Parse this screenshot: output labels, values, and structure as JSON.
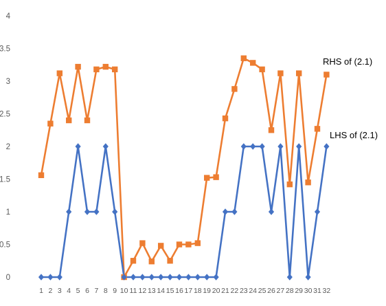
{
  "chart_data": {
    "type": "line",
    "x_tick_labels": [
      "1",
      "2",
      "3",
      "4",
      "5",
      "6",
      "7",
      "8",
      "9",
      "10",
      "11",
      "12",
      "13",
      "14",
      "15",
      "16",
      "17",
      "18",
      "19",
      "20",
      "21",
      "22",
      "23",
      "24",
      "25",
      "26",
      "27",
      "28",
      "29",
      "30",
      "31",
      "32"
    ],
    "y_tick_labels": [
      "0",
      "0.5",
      "1",
      "1.5",
      "2",
      "2.5",
      "3",
      "3.5",
      "4"
    ],
    "ylim": [
      0,
      4
    ],
    "y_ticks": [
      0,
      0.5,
      1,
      1.5,
      2,
      2.5,
      3,
      3.5,
      4
    ],
    "grid": false,
    "series": [
      {
        "name": "RHS of (2.1)",
        "color": "#ED7D31",
        "marker": "square",
        "values": [
          1.56,
          2.35,
          3.12,
          2.4,
          3.22,
          2.4,
          3.18,
          3.22,
          3.18,
          0.0,
          0.25,
          0.52,
          0.24,
          0.48,
          0.25,
          0.5,
          0.5,
          0.52,
          1.52,
          1.53,
          2.43,
          2.88,
          3.35,
          3.28,
          3.18,
          2.25,
          3.12,
          1.42,
          3.12,
          1.45,
          2.27,
          3.1
        ]
      },
      {
        "name": "LHS of (2.1)",
        "color": "#4472C4",
        "marker": "diamond",
        "values": [
          0,
          0,
          0,
          1,
          2,
          1,
          1,
          2,
          1,
          0,
          0,
          0,
          0,
          0,
          0,
          0,
          0,
          0,
          0,
          0,
          1,
          1,
          2,
          2,
          2,
          1,
          2,
          0,
          2,
          0,
          1,
          2
        ]
      }
    ]
  }
}
